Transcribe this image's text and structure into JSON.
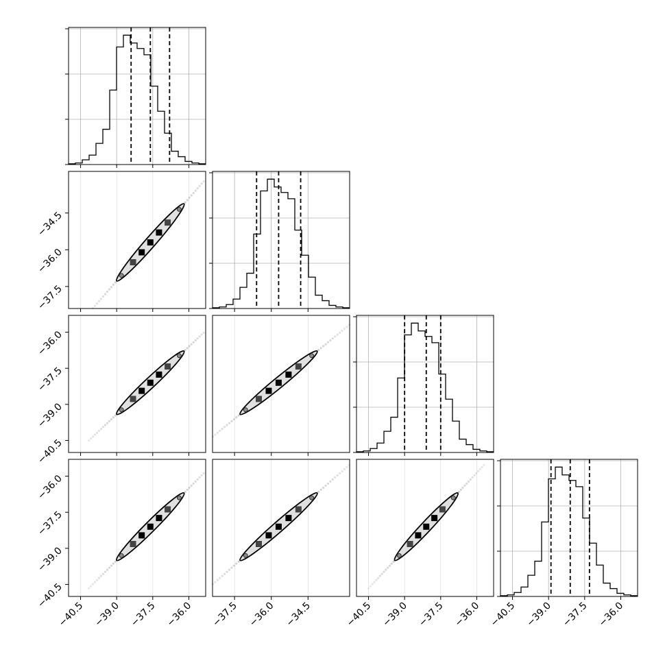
{
  "chart_data": {
    "type": "corner",
    "parameters": 4,
    "grid": true,
    "axes": [
      {
        "range": [
          -41.0,
          -35.3
        ],
        "ticks": [
          -40.5,
          -39.0,
          -37.5,
          -36.0
        ],
        "tick_labels": [
          "−40.5",
          "−39.0",
          "−37.5",
          "−36.0"
        ]
      },
      {
        "range": [
          -38.4,
          -32.8
        ],
        "ticks": [
          -37.5,
          -36.0,
          -34.5
        ],
        "tick_labels": [
          "−37.5",
          "−36.0",
          "−34.5"
        ]
      },
      {
        "range": [
          -41.0,
          -35.3
        ],
        "ticks": [
          -40.5,
          -39.0,
          -37.5,
          -36.0
        ],
        "tick_labels": [
          "−40.5",
          "−39.0",
          "−37.5",
          "−36.0"
        ]
      },
      {
        "range": [
          -41.0,
          -35.3
        ],
        "ticks": [
          -40.5,
          -39.0,
          -37.5,
          -36.0
        ],
        "tick_labels": [
          "−40.5",
          "−39.0",
          "−37.5",
          "−36.0"
        ]
      }
    ],
    "marginals": [
      {
        "quantiles": [
          -38.4,
          -37.6,
          -36.8
        ],
        "counts": [
          1,
          2,
          6,
          12,
          27,
          45,
          95,
          150,
          165,
          155,
          148,
          140,
          100,
          68,
          40,
          17,
          10,
          4,
          2,
          1
        ]
      },
      {
        "quantiles": [
          -36.6,
          -35.7,
          -34.8
        ],
        "counts": [
          1,
          2,
          5,
          12,
          27,
          45,
          95,
          150,
          165,
          155,
          148,
          140,
          100,
          68,
          40,
          17,
          10,
          4,
          2,
          1
        ]
      },
      {
        "quantiles": [
          -39.0,
          -38.1,
          -37.5
        ],
        "counts": [
          1,
          2,
          5,
          12,
          27,
          45,
          95,
          150,
          165,
          155,
          148,
          140,
          100,
          68,
          40,
          17,
          10,
          4,
          2,
          1
        ]
      },
      {
        "quantiles": [
          -38.9,
          -38.1,
          -37.3
        ],
        "counts": [
          1,
          2,
          5,
          12,
          27,
          45,
          95,
          150,
          165,
          155,
          148,
          140,
          100,
          68,
          40,
          17,
          10,
          4,
          2,
          1
        ]
      }
    ],
    "colors": {
      "line": "#000000",
      "grid": "#b0b0b0"
    }
  }
}
